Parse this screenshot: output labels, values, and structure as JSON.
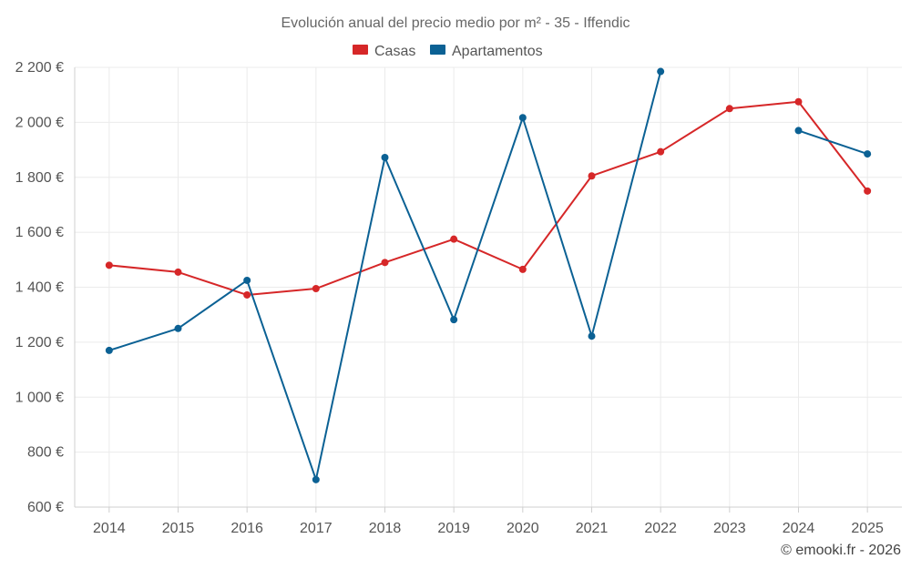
{
  "chart_data": {
    "type": "line",
    "title": "Evolución anual del precio medio por m² - 35 - Iffendic",
    "categories": [
      "2014",
      "2015",
      "2016",
      "2017",
      "2018",
      "2019",
      "2020",
      "2021",
      "2022",
      "2023",
      "2024",
      "2025"
    ],
    "ylim": [
      600,
      2200
    ],
    "yticks": [
      600,
      800,
      1000,
      1200,
      1400,
      1600,
      1800,
      2000,
      2200
    ],
    "ytick_labels": [
      "600 €",
      "800 €",
      "1 000 €",
      "1 200 €",
      "1 400 €",
      "1 600 €",
      "1 800 €",
      "2 000 €",
      "2 200 €"
    ],
    "grid": true,
    "legend_position": "top-center",
    "series": [
      {
        "name": "Casas",
        "color": "#d62728",
        "values": [
          1480,
          1455,
          1372,
          1395,
          1490,
          1575,
          1465,
          1805,
          1893,
          2050,
          2075,
          1750
        ]
      },
      {
        "name": "Apartamentos",
        "color": "#0b6194",
        "values": [
          1170,
          1250,
          1425,
          700,
          1872,
          1282,
          2017,
          1222,
          2185,
          null,
          1970,
          1885
        ]
      }
    ]
  },
  "footer": {
    "copyright": "© emooki.fr - 2026"
  }
}
